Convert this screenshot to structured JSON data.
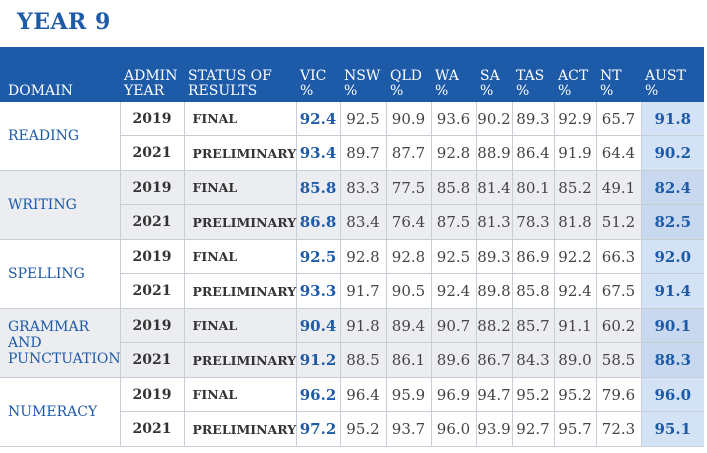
{
  "page_title": "YEAR 9",
  "headers": {
    "domain": "DOMAIN",
    "admin_year": [
      "ADMIN",
      "YEAR"
    ],
    "status": [
      "STATUS OF",
      "RESULTS"
    ],
    "vic": [
      "VIC",
      "%"
    ],
    "nsw": [
      "NSW",
      "%"
    ],
    "qld": [
      "QLD",
      "%"
    ],
    "wa": [
      "WA",
      "%"
    ],
    "sa": [
      "SA",
      "%"
    ],
    "tas": [
      "TAS",
      "%"
    ],
    "act": [
      "ACT",
      "%"
    ],
    "nt": [
      "NT",
      "%"
    ],
    "aust": [
      "AUST",
      "%"
    ]
  },
  "domains": [
    {
      "name": [
        "READING"
      ],
      "rows": [
        {
          "year": "2019",
          "status": "FINAL",
          "vic": "92.4",
          "nsw": "92.5",
          "qld": "90.9",
          "wa": "93.6",
          "sa": "90.2",
          "tas": "89.3",
          "act": "92.9",
          "nt": "65.7",
          "aust": "91.8"
        },
        {
          "year": "2021",
          "status": "PRELIMINARY",
          "vic": "93.4",
          "nsw": "89.7",
          "qld": "87.7",
          "wa": "92.8",
          "sa": "88.9",
          "tas": "86.4",
          "act": "91.9",
          "nt": "64.4",
          "aust": "90.2"
        }
      ]
    },
    {
      "name": [
        "WRITING"
      ],
      "rows": [
        {
          "year": "2019",
          "status": "FINAL",
          "vic": "85.8",
          "nsw": "83.3",
          "qld": "77.5",
          "wa": "85.8",
          "sa": "81.4",
          "tas": "80.1",
          "act": "85.2",
          "nt": "49.1",
          "aust": "82.4"
        },
        {
          "year": "2021",
          "status": "PRELIMINARY",
          "vic": "86.8",
          "nsw": "83.4",
          "qld": "76.4",
          "wa": "87.5",
          "sa": "81.3",
          "tas": "78.3",
          "act": "81.8",
          "nt": "51.2",
          "aust": "82.5"
        }
      ]
    },
    {
      "name": [
        "SPELLING"
      ],
      "rows": [
        {
          "year": "2019",
          "status": "FINAL",
          "vic": "92.5",
          "nsw": "92.8",
          "qld": "92.8",
          "wa": "92.5",
          "sa": "89.3",
          "tas": "86.9",
          "act": "92.2",
          "nt": "66.3",
          "aust": "92.0"
        },
        {
          "year": "2021",
          "status": "PRELIMINARY",
          "vic": "93.3",
          "nsw": "91.7",
          "qld": "90.5",
          "wa": "92.4",
          "sa": "89.8",
          "tas": "85.8",
          "act": "92.4",
          "nt": "67.5",
          "aust": "91.4"
        }
      ]
    },
    {
      "name": [
        "GRAMMAR",
        "AND",
        "PUNCTUATION"
      ],
      "rows": [
        {
          "year": "2019",
          "status": "FINAL",
          "vic": "90.4",
          "nsw": "91.8",
          "qld": "89.4",
          "wa": "90.7",
          "sa": "88.2",
          "tas": "85.7",
          "act": "91.1",
          "nt": "60.2",
          "aust": "90.1"
        },
        {
          "year": "2021",
          "status": "PRELIMINARY",
          "vic": "91.2",
          "nsw": "88.5",
          "qld": "86.1",
          "wa": "89.6",
          "sa": "86.7",
          "tas": "84.3",
          "act": "89.0",
          "nt": "58.5",
          "aust": "88.3"
        }
      ]
    },
    {
      "name": [
        "NUMERACY"
      ],
      "rows": [
        {
          "year": "2019",
          "status": "FINAL",
          "vic": "96.2",
          "nsw": "96.4",
          "qld": "95.9",
          "wa": "96.9",
          "sa": "94.7",
          "tas": "95.2",
          "act": "95.2",
          "nt": "79.6",
          "aust": "96.0"
        },
        {
          "year": "2021",
          "status": "PRELIMINARY",
          "vic": "97.2",
          "nsw": "95.2",
          "qld": "93.7",
          "wa": "96.0",
          "sa": "93.9",
          "tas": "92.7",
          "act": "95.7",
          "nt": "72.3",
          "aust": "95.1"
        }
      ]
    }
  ]
}
